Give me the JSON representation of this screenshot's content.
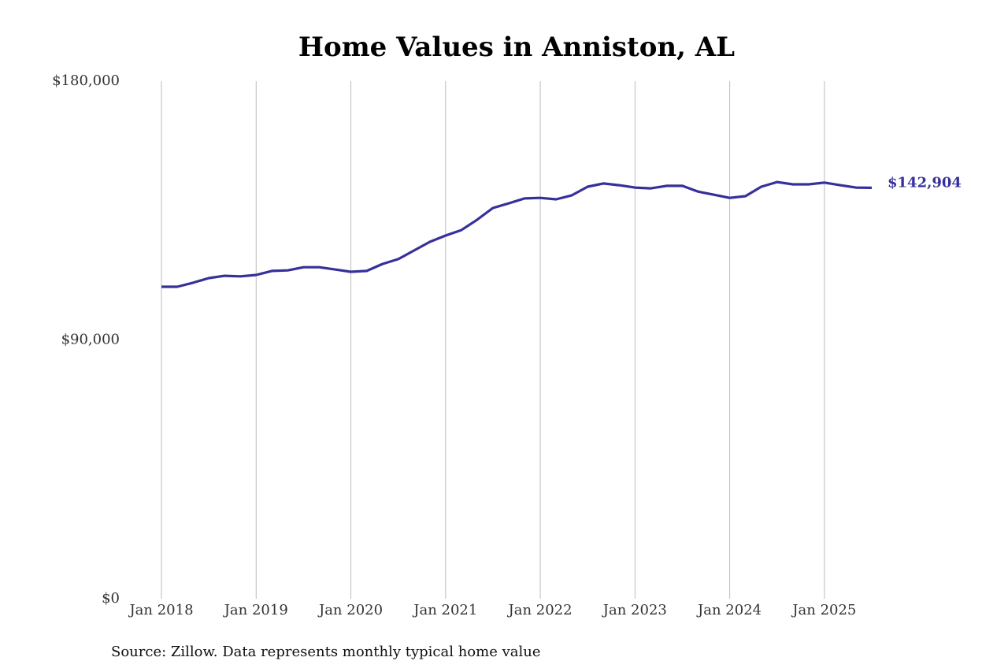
{
  "chart_data": {
    "type": "line",
    "title": "Home Values in Anniston, AL",
    "source": "Source: Zillow. Data represents monthly typical home value",
    "x": [
      "2018-01",
      "2018-03",
      "2018-05",
      "2018-07",
      "2018-09",
      "2018-11",
      "2019-01",
      "2019-03",
      "2019-05",
      "2019-07",
      "2019-09",
      "2019-11",
      "2020-01",
      "2020-03",
      "2020-05",
      "2020-07",
      "2020-09",
      "2020-11",
      "2021-01",
      "2021-03",
      "2021-05",
      "2021-07",
      "2021-09",
      "2021-11",
      "2022-01",
      "2022-03",
      "2022-05",
      "2022-07",
      "2022-09",
      "2022-11",
      "2023-01",
      "2023-03",
      "2023-05",
      "2023-07",
      "2023-09",
      "2023-11",
      "2024-01",
      "2024-03",
      "2024-05",
      "2024-07",
      "2024-09",
      "2024-11",
      "2025-01",
      "2025-03",
      "2025-05",
      "2025-07"
    ],
    "series": [
      {
        "name": "Typical home value",
        "color": "#36309a",
        "values": [
          108500,
          108500,
          109900,
          111500,
          112300,
          112100,
          112600,
          114000,
          114200,
          115300,
          115300,
          114500,
          113700,
          114000,
          116400,
          118100,
          121100,
          124100,
          126300,
          128200,
          131800,
          135900,
          137500,
          139200,
          139400,
          138900,
          140300,
          143300,
          144400,
          143800,
          143000,
          142700,
          143600,
          143600,
          141600,
          140500,
          139400,
          140000,
          143300,
          144900,
          144100,
          144100,
          144700,
          143800,
          143000,
          142904
        ],
        "value_labels": [
          null,
          null,
          null,
          null,
          null,
          null,
          null,
          null,
          null,
          null,
          null,
          null,
          null,
          null,
          null,
          null,
          null,
          null,
          null,
          null,
          null,
          null,
          null,
          null,
          null,
          null,
          null,
          null,
          null,
          null,
          null,
          null,
          null,
          null,
          null,
          null,
          null,
          null,
          null,
          null,
          null,
          null,
          null,
          null,
          null,
          "$142,904"
        ]
      }
    ],
    "xlim": [
      "2018-01",
      "2025-07"
    ],
    "xticks": [
      {
        "value": "2018-01",
        "label": "Jan 2018"
      },
      {
        "value": "2019-01",
        "label": "Jan 2019"
      },
      {
        "value": "2020-01",
        "label": "Jan 2020"
      },
      {
        "value": "2021-01",
        "label": "Jan 2021"
      },
      {
        "value": "2022-01",
        "label": "Jan 2022"
      },
      {
        "value": "2023-01",
        "label": "Jan 2023"
      },
      {
        "value": "2024-01",
        "label": "Jan 2024"
      },
      {
        "value": "2025-01",
        "label": "Jan 2025"
      }
    ],
    "ylim": [
      0,
      180000
    ],
    "yticks": [
      {
        "value": 0,
        "label": "$0"
      },
      {
        "value": 90000,
        "label": "$90,000"
      },
      {
        "value": 180000,
        "label": "$180,000"
      }
    ],
    "grid": true
  }
}
